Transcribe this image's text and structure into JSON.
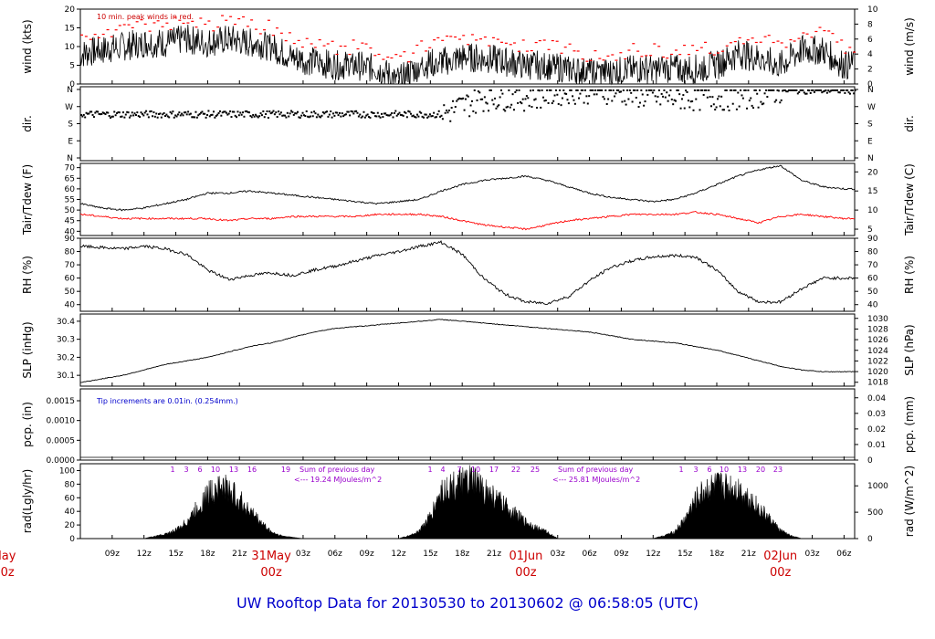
{
  "title": "UW Rooftop Data for 20130530  to  20130602 @ 06:58:05  (UTC)",
  "colors": {
    "trace": "#000000",
    "peak": "#ff0000",
    "dew": "#ff0000",
    "note": "#cc0000",
    "rad_note": "#9900cc",
    "title": "#0000cc",
    "pcp_note": "#0000cc",
    "day_label": "#cc0000"
  },
  "x_axis": {
    "start_hour": 6,
    "end_hour": 79,
    "ticks": [
      {
        "h": 9,
        "label": "09z"
      },
      {
        "h": 12,
        "label": "12z"
      },
      {
        "h": 15,
        "label": "15z"
      },
      {
        "h": 18,
        "label": "18z"
      },
      {
        "h": 21,
        "label": "21z"
      },
      {
        "h": 27,
        "label": "03z"
      },
      {
        "h": 30,
        "label": "06z"
      },
      {
        "h": 33,
        "label": "09z"
      },
      {
        "h": 36,
        "label": "12z"
      },
      {
        "h": 39,
        "label": "15z"
      },
      {
        "h": 42,
        "label": "18z"
      },
      {
        "h": 45,
        "label": "21z"
      },
      {
        "h": 51,
        "label": "03z"
      },
      {
        "h": 54,
        "label": "06z"
      },
      {
        "h": 57,
        "label": "09z"
      },
      {
        "h": 60,
        "label": "12z"
      },
      {
        "h": 63,
        "label": "15z"
      },
      {
        "h": 66,
        "label": "18z"
      },
      {
        "h": 69,
        "label": "21z"
      },
      {
        "h": 75,
        "label": "03z"
      },
      {
        "h": 78,
        "label": "06z"
      }
    ],
    "day_labels": [
      {
        "h": 0,
        "date": "May",
        "time": "00z"
      },
      {
        "h": 24,
        "date": "31May",
        "time": "00z"
      },
      {
        "h": 48,
        "date": "01Jun",
        "time": "00z"
      },
      {
        "h": 72,
        "date": "02Jun",
        "time": "00z"
      }
    ]
  },
  "panels": {
    "wind": {
      "ylabel_left": "wind (kts)",
      "ylabel_right": "wind (m/s)",
      "ylim": [
        0,
        20
      ],
      "ticks_left": [
        "0",
        "5",
        "10",
        "15",
        "20"
      ],
      "ylim_right": [
        0,
        10
      ],
      "ticks_right": [
        "0",
        "2",
        "4",
        "6",
        "8",
        "10"
      ],
      "note": "10 min. peak winds in red."
    },
    "dir": {
      "ylabel_left": "dir.",
      "ylabel_right": "dir.",
      "ticks": [
        "N",
        "E",
        "S",
        "W",
        "N"
      ]
    },
    "temp": {
      "ylabel_left": "Tair/Tdew (F)",
      "ylabel_right": "Tair/Tdew (C)",
      "ylim": [
        38,
        72
      ],
      "ticks_left": [
        "40",
        "45",
        "50",
        "55",
        "60",
        "65",
        "70"
      ],
      "ticks_right": [
        "5",
        "10",
        "15",
        "20"
      ]
    },
    "rh": {
      "ylabel_left": "RH (%)",
      "ylabel_right": "RH (%)",
      "ylim": [
        35,
        90
      ],
      "ticks_left": [
        "40",
        "50",
        "60",
        "70",
        "80",
        "90"
      ],
      "ticks_right": [
        "40",
        "50",
        "60",
        "70",
        "80",
        "90"
      ]
    },
    "slp": {
      "ylabel_left": "SLP (inHg)",
      "ylabel_right": "SLP (hPa)",
      "ylim": [
        30.04,
        30.44
      ],
      "ticks_left": [
        "30.1",
        "30.2",
        "30.3",
        "30.4"
      ],
      "ticks_right": [
        "1018",
        "1020",
        "1022",
        "1024",
        "1026",
        "1028",
        "1030"
      ]
    },
    "pcp": {
      "ylabel_left": "pcp. (in)",
      "ylabel_right": "pcp. (mm)",
      "ylim": [
        0,
        0.0018
      ],
      "ticks_left": [
        "0.0000",
        "0.0005",
        "0.0010",
        "0.0015"
      ],
      "ticks_right": [
        "0",
        "0.01",
        "0.02",
        "0.03",
        "0.04"
      ],
      "note": "Tip increments are 0.01in. (0.254mm.)"
    },
    "rad": {
      "ylabel_left": "rad(Lgly/hr)",
      "ylabel_right": "rad (W/m^2)",
      "ylim": [
        0,
        110
      ],
      "ticks_left": [
        "0",
        "20",
        "40",
        "60",
        "80",
        "100"
      ],
      "ticks_right": [
        "0",
        "500",
        "1000"
      ],
      "hour_marks": [
        "1",
        "3",
        "6",
        "10",
        "13",
        "16",
        "19",
        "1",
        "4",
        "7",
        "10",
        "17",
        "22",
        "25",
        "1",
        "3",
        "6",
        "10",
        "13",
        "20",
        "23"
      ],
      "sums": [
        {
          "line1": "Sum of previous day",
          "line2": "<--- 19.24 MJoules/m^2"
        },
        {
          "line1": "Sum of previous day",
          "line2": "<--- 25.81 MJoules/m^2"
        }
      ]
    }
  },
  "chart_data": {
    "type": "line",
    "x_units": "hours since 20130530 00z",
    "series": [
      {
        "panel": "wind",
        "points": [
          [
            6,
            8
          ],
          [
            8,
            9
          ],
          [
            10,
            10
          ],
          [
            12,
            11
          ],
          [
            14,
            11
          ],
          [
            16,
            12
          ],
          [
            18,
            11
          ],
          [
            20,
            12
          ],
          [
            22,
            11
          ],
          [
            24,
            10
          ],
          [
            26,
            7
          ],
          [
            28,
            6
          ],
          [
            30,
            5
          ],
          [
            32,
            5
          ],
          [
            34,
            4
          ],
          [
            36,
            1
          ],
          [
            38,
            5
          ],
          [
            40,
            6
          ],
          [
            42,
            7
          ],
          [
            44,
            7
          ],
          [
            46,
            6
          ],
          [
            48,
            5
          ],
          [
            50,
            5
          ],
          [
            52,
            4
          ],
          [
            54,
            3
          ],
          [
            56,
            3
          ],
          [
            58,
            4
          ],
          [
            60,
            4
          ],
          [
            62,
            4
          ],
          [
            64,
            4
          ],
          [
            66,
            5
          ],
          [
            68,
            8
          ],
          [
            70,
            7
          ],
          [
            72,
            5
          ],
          [
            74,
            9
          ],
          [
            76,
            9
          ],
          [
            78,
            5
          ]
        ]
      },
      {
        "panel": "temp",
        "name_hidden": "Tair",
        "points": [
          [
            6,
            53
          ],
          [
            8,
            51
          ],
          [
            10,
            50
          ],
          [
            12,
            51
          ],
          [
            14,
            53
          ],
          [
            16,
            55
          ],
          [
            18,
            58
          ],
          [
            20,
            58
          ],
          [
            22,
            59
          ],
          [
            24,
            58
          ],
          [
            26,
            57
          ],
          [
            28,
            56
          ],
          [
            30,
            55
          ],
          [
            32,
            54
          ],
          [
            34,
            53
          ],
          [
            36,
            54
          ],
          [
            38,
            55
          ],
          [
            40,
            59
          ],
          [
            42,
            62
          ],
          [
            44,
            64
          ],
          [
            46,
            65
          ],
          [
            48,
            66
          ],
          [
            50,
            64
          ],
          [
            52,
            61
          ],
          [
            54,
            58
          ],
          [
            56,
            56
          ],
          [
            58,
            55
          ],
          [
            60,
            54
          ],
          [
            62,
            55
          ],
          [
            64,
            58
          ],
          [
            66,
            62
          ],
          [
            68,
            66
          ],
          [
            70,
            69
          ],
          [
            72,
            71
          ],
          [
            74,
            64
          ],
          [
            76,
            61
          ],
          [
            78,
            60
          ]
        ]
      },
      {
        "panel": "temp",
        "points": [
          [
            6,
            48
          ],
          [
            8,
            47
          ],
          [
            10,
            46
          ],
          [
            12,
            46
          ],
          [
            14,
            46
          ],
          [
            16,
            46
          ],
          [
            18,
            46
          ],
          [
            20,
            45
          ],
          [
            22,
            46
          ],
          [
            24,
            46
          ],
          [
            26,
            47
          ],
          [
            28,
            47
          ],
          [
            30,
            47
          ],
          [
            32,
            47
          ],
          [
            34,
            48
          ],
          [
            36,
            48
          ],
          [
            38,
            48
          ],
          [
            40,
            47
          ],
          [
            42,
            45
          ],
          [
            44,
            43
          ],
          [
            46,
            42
          ],
          [
            48,
            41
          ],
          [
            50,
            43
          ],
          [
            52,
            45
          ],
          [
            54,
            46
          ],
          [
            56,
            47
          ],
          [
            58,
            48
          ],
          [
            60,
            48
          ],
          [
            62,
            48
          ],
          [
            64,
            49
          ],
          [
            66,
            48
          ],
          [
            68,
            46
          ],
          [
            70,
            44
          ],
          [
            72,
            47
          ],
          [
            74,
            48
          ],
          [
            76,
            47
          ],
          [
            78,
            46
          ]
        ]
      },
      {
        "panel": "rh",
        "points": [
          [
            6,
            84
          ],
          [
            8,
            83
          ],
          [
            10,
            82
          ],
          [
            12,
            84
          ],
          [
            14,
            82
          ],
          [
            16,
            78
          ],
          [
            18,
            66
          ],
          [
            20,
            59
          ],
          [
            22,
            62
          ],
          [
            24,
            64
          ],
          [
            26,
            62
          ],
          [
            28,
            66
          ],
          [
            30,
            69
          ],
          [
            32,
            73
          ],
          [
            34,
            77
          ],
          [
            36,
            80
          ],
          [
            38,
            84
          ],
          [
            40,
            87
          ],
          [
            42,
            78
          ],
          [
            44,
            60
          ],
          [
            46,
            48
          ],
          [
            48,
            42
          ],
          [
            50,
            41
          ],
          [
            52,
            46
          ],
          [
            54,
            58
          ],
          [
            56,
            68
          ],
          [
            58,
            73
          ],
          [
            60,
            76
          ],
          [
            62,
            77
          ],
          [
            64,
            76
          ],
          [
            66,
            66
          ],
          [
            68,
            50
          ],
          [
            70,
            42
          ],
          [
            72,
            42
          ],
          [
            74,
            52
          ],
          [
            76,
            60
          ],
          [
            78,
            60
          ]
        ]
      },
      {
        "panel": "slp",
        "points": [
          [
            6,
            30.06
          ],
          [
            8,
            30.08
          ],
          [
            10,
            30.1
          ],
          [
            12,
            30.13
          ],
          [
            14,
            30.16
          ],
          [
            16,
            30.18
          ],
          [
            18,
            30.2
          ],
          [
            20,
            30.23
          ],
          [
            22,
            30.26
          ],
          [
            24,
            30.28
          ],
          [
            26,
            30.31
          ],
          [
            28,
            30.34
          ],
          [
            30,
            30.36
          ],
          [
            32,
            30.37
          ],
          [
            34,
            30.38
          ],
          [
            36,
            30.39
          ],
          [
            38,
            30.4
          ],
          [
            40,
            30.41
          ],
          [
            42,
            30.4
          ],
          [
            44,
            30.39
          ],
          [
            46,
            30.38
          ],
          [
            48,
            30.37
          ],
          [
            50,
            30.36
          ],
          [
            52,
            30.35
          ],
          [
            54,
            30.34
          ],
          [
            56,
            30.32
          ],
          [
            58,
            30.3
          ],
          [
            60,
            30.29
          ],
          [
            62,
            30.28
          ],
          [
            64,
            30.26
          ],
          [
            66,
            30.24
          ],
          [
            68,
            30.21
          ],
          [
            70,
            30.18
          ],
          [
            72,
            30.15
          ],
          [
            74,
            30.13
          ],
          [
            76,
            30.12
          ],
          [
            78,
            30.12
          ]
        ]
      },
      {
        "panel": "rad",
        "points": [
          [
            6,
            0
          ],
          [
            12,
            0
          ],
          [
            13,
            4
          ],
          [
            14,
            8
          ],
          [
            15,
            15
          ],
          [
            16,
            30
          ],
          [
            17,
            55
          ],
          [
            18,
            80
          ],
          [
            19,
            95
          ],
          [
            20,
            90
          ],
          [
            21,
            70
          ],
          [
            22,
            50
          ],
          [
            23,
            30
          ],
          [
            24,
            12
          ],
          [
            25,
            5
          ],
          [
            26,
            2
          ],
          [
            27,
            0
          ],
          [
            36,
            0
          ],
          [
            37,
            5
          ],
          [
            38,
            15
          ],
          [
            39,
            40
          ],
          [
            40,
            85
          ],
          [
            41,
            95
          ],
          [
            42,
            100
          ],
          [
            43,
            105
          ],
          [
            44,
            90
          ],
          [
            45,
            75
          ],
          [
            46,
            60
          ],
          [
            47,
            45
          ],
          [
            48,
            30
          ],
          [
            49,
            20
          ],
          [
            50,
            12
          ],
          [
            51,
            0
          ],
          [
            60,
            0
          ],
          [
            61,
            5
          ],
          [
            62,
            12
          ],
          [
            63,
            35
          ],
          [
            64,
            70
          ],
          [
            65,
            90
          ],
          [
            66,
            95
          ],
          [
            67,
            95
          ],
          [
            68,
            90
          ],
          [
            69,
            75
          ],
          [
            70,
            55
          ],
          [
            71,
            35
          ],
          [
            72,
            15
          ],
          [
            73,
            5
          ],
          [
            74,
            0
          ],
          [
            79,
            0
          ]
        ]
      }
    ],
    "direction_points": [
      [
        6,
        "S"
      ],
      [
        12,
        "S"
      ],
      [
        18,
        "S"
      ],
      [
        24,
        "S"
      ],
      [
        30,
        "S"
      ],
      [
        36,
        "S"
      ],
      [
        40,
        "S"
      ],
      [
        44,
        "W"
      ],
      [
        48,
        "W"
      ],
      [
        52,
        "N"
      ],
      [
        56,
        "N"
      ],
      [
        60,
        "W"
      ],
      [
        64,
        "W"
      ],
      [
        68,
        "W"
      ],
      [
        72,
        "N"
      ],
      [
        76,
        "N"
      ],
      [
        78,
        "N"
      ]
    ],
    "pcp_values": []
  }
}
